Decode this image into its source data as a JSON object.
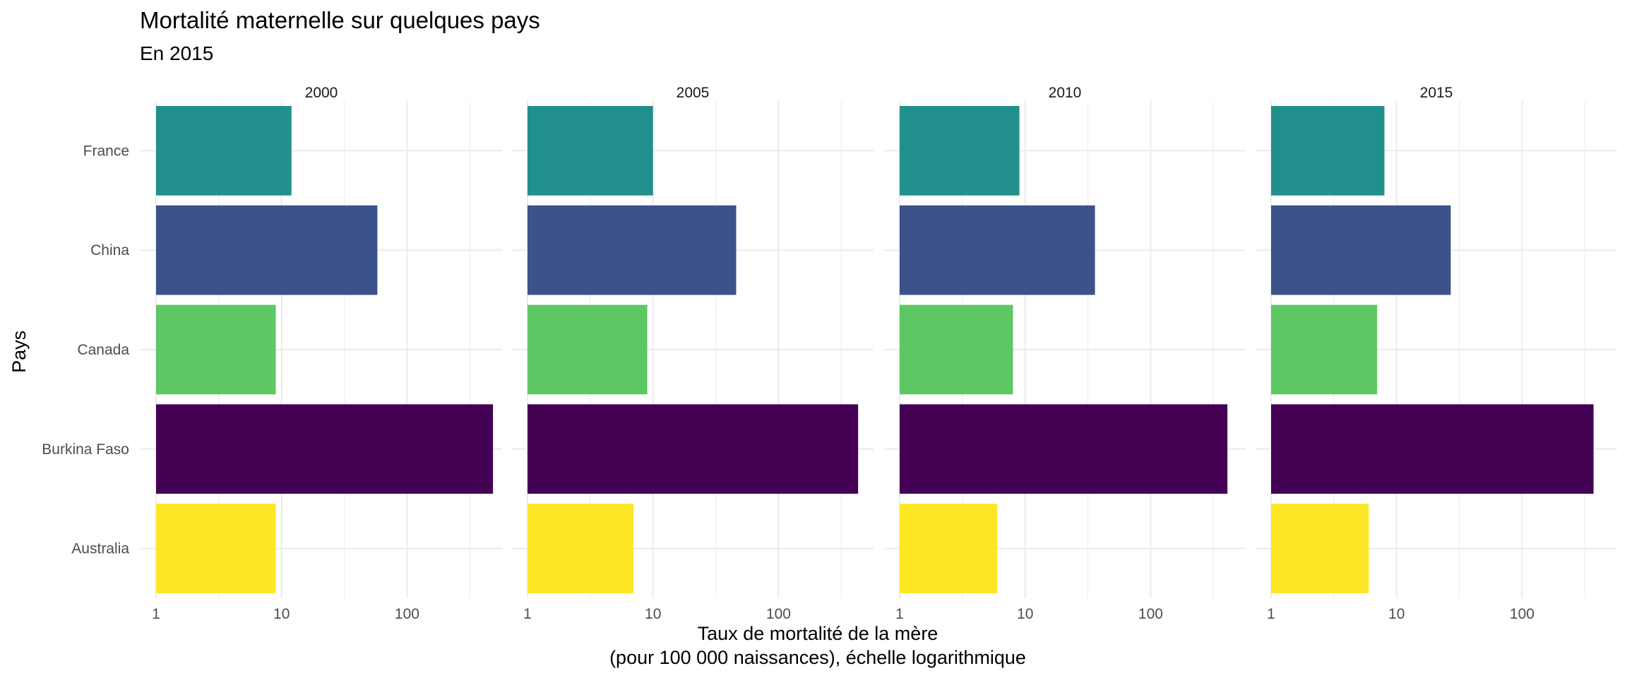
{
  "chart_data": {
    "type": "bar",
    "orientation": "horizontal",
    "title": "Mortalité maternelle sur quelques pays",
    "subtitle": "En 2015",
    "xlabel_line1": "Taux de mortalité de la mère",
    "xlabel_line2": "(pour 100 000 naissances), échelle logarithmique",
    "ylabel": "Pays",
    "x_scale": "log10",
    "xlim": [
      1,
      430
    ],
    "x_ticks": [
      1,
      10,
      100
    ],
    "x_tick_labels": [
      "1",
      "10",
      "100"
    ],
    "grid": true,
    "legend": "none",
    "categories": [
      "France",
      "China",
      "Canada",
      "Burkina Faso",
      "Australia"
    ],
    "colors": {
      "France": "#21908C",
      "China": "#3B528B",
      "Canada": "#5DC863",
      "Burkina Faso": "#440154",
      "Australia": "#FDE725"
    },
    "panels": [
      {
        "label": "2000",
        "values": [
          12,
          58,
          9,
          484,
          9
        ]
      },
      {
        "label": "2005",
        "values": [
          10,
          46,
          9,
          431,
          7
        ]
      },
      {
        "label": "2010",
        "values": [
          9,
          36,
          8,
          409,
          6
        ]
      },
      {
        "label": "2015",
        "values": [
          8,
          27,
          7,
          371,
          6
        ]
      }
    ]
  }
}
